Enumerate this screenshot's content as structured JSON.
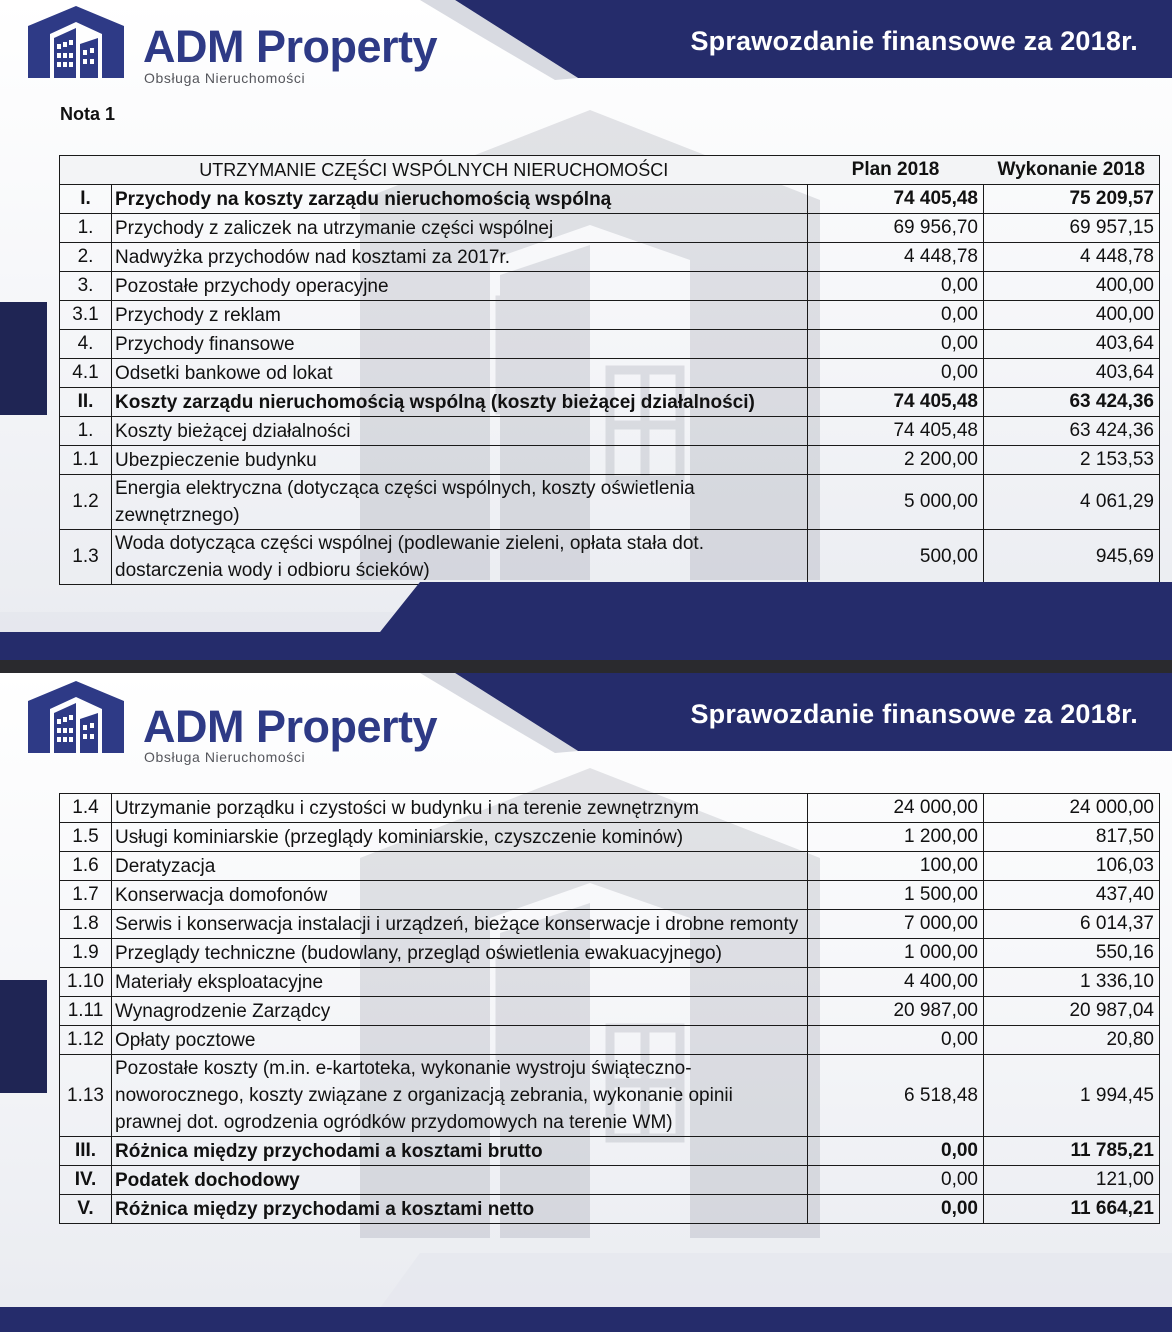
{
  "brand": {
    "name": "ADM Property",
    "tagline": "Obsługa Nieruchomości"
  },
  "report_title": "Sprawozdanie finansowe za 2018r.",
  "note_label": "Nota 1",
  "table": {
    "section_header": "UTRZYMANIE CZĘŚCI WSPÓLNYCH NIERUCHOMOŚCI",
    "col_plan": "Plan 2018",
    "col_exec": "Wykonanie 2018",
    "rows_page1": [
      {
        "num": "I.",
        "label": "Przychody na koszty zarządu nieruchomością wspólną",
        "plan": "74 405,48",
        "exec": "75 209,57",
        "bold": true
      },
      {
        "num": "1.",
        "label": "Przychody z zaliczek na utrzymanie części wspólnej",
        "plan": "69 956,70",
        "exec": "69 957,15",
        "bold": false
      },
      {
        "num": "2.",
        "label": "Nadwyżka przychodów nad kosztami za 2017r.",
        "plan": "4 448,78",
        "exec": "4 448,78",
        "bold": false
      },
      {
        "num": "3.",
        "label": "Pozostałe przychody operacyjne",
        "plan": "0,00",
        "exec": "400,00",
        "bold": false
      },
      {
        "num": "3.1",
        "label": "Przychody z reklam",
        "plan": "0,00",
        "exec": "400,00",
        "bold": false
      },
      {
        "num": "4.",
        "label": "Przychody finansowe",
        "plan": "0,00",
        "exec": "403,64",
        "bold": false
      },
      {
        "num": "4.1",
        "label": "Odsetki bankowe od lokat",
        "plan": "0,00",
        "exec": "403,64",
        "bold": false
      },
      {
        "num": "II.",
        "label": "Koszty zarządu nieruchomością wspólną (koszty bieżącej działalności)",
        "plan": "74 405,48",
        "exec": "63 424,36",
        "bold": true
      },
      {
        "num": "1.",
        "label": "Koszty bieżącej działalności",
        "plan": "74 405,48",
        "exec": "63 424,36",
        "bold": false
      },
      {
        "num": "1.1",
        "label": "Ubezpieczenie budynku",
        "plan": "2 200,00",
        "exec": "2 153,53",
        "bold": false
      },
      {
        "num": "1.2",
        "label": "Energia elektryczna (dotycząca części wspólnych, koszty oświetlenia zewnętrznego)",
        "plan": "5 000,00",
        "exec": "4 061,29",
        "bold": false
      },
      {
        "num": "1.3",
        "label": "Woda dotycząca części wspólnej (podlewanie zieleni, opłata stała dot. dostarczenia wody i odbioru ścieków)",
        "plan": "500,00",
        "exec": "945,69",
        "bold": false
      }
    ],
    "rows_page2": [
      {
        "num": "1.4",
        "label": "Utrzymanie porządku i czystości w budynku i na terenie zewnętrznym",
        "plan": "24 000,00",
        "exec": "24 000,00",
        "bold": false
      },
      {
        "num": "1.5",
        "label": "Usługi kominiarskie (przeglądy kominiarskie, czyszczenie kominów)",
        "plan": "1 200,00",
        "exec": "817,50",
        "bold": false
      },
      {
        "num": "1.6",
        "label": "Deratyzacja",
        "plan": "100,00",
        "exec": "106,03",
        "bold": false
      },
      {
        "num": "1.7",
        "label": "Konserwacja domofonów",
        "plan": "1 500,00",
        "exec": "437,40",
        "bold": false
      },
      {
        "num": "1.8",
        "label": "Serwis i konserwacja instalacji i urządzeń, bieżące konserwacje i drobne remonty",
        "plan": "7 000,00",
        "exec": "6 014,37",
        "bold": false
      },
      {
        "num": "1.9",
        "label": "Przeglądy techniczne (budowlany, przegląd oświetlenia ewakuacyjnego)",
        "plan": "1 000,00",
        "exec": "550,16",
        "bold": false
      },
      {
        "num": "1.10",
        "label": "Materiały eksploatacyjne",
        "plan": "4 400,00",
        "exec": "1 336,10",
        "bold": false
      },
      {
        "num": "1.11",
        "label": "Wynagrodzenie Zarządcy",
        "plan": "20 987,00",
        "exec": "20 987,04",
        "bold": false
      },
      {
        "num": "1.12",
        "label": "Opłaty pocztowe",
        "plan": "0,00",
        "exec": "20,80",
        "bold": false
      },
      {
        "num": "1.13",
        "label": "Pozostałe koszty (m.in. e-kartoteka, wykonanie wystroju świąteczno-noworocznego, koszty związane z organizacją zebrania, wykonanie opinii prawnej dot. ogrodzenia ogródków przydomowych na terenie WM)",
        "plan": "6 518,48",
        "exec": "1 994,45",
        "bold": false
      },
      {
        "num": "III.",
        "label": "Różnica między przychodami a kosztami  brutto",
        "plan": "0,00",
        "exec": "11 785,21",
        "bold": true
      },
      {
        "num": "IV.",
        "label": "Podatek dochodowy",
        "plan": "0,00",
        "exec": "121,00",
        "bold": "label"
      },
      {
        "num": "V.",
        "label": "Różnica między przychodami a kosztami  netto",
        "plan": "0,00",
        "exec": "11 664,21",
        "bold": true
      }
    ]
  },
  "colors": {
    "navy": "#252c6b",
    "dark_navy": "#1f2554",
    "brand_blue": "#2e3a86"
  },
  "icons": [
    "building-logo-icon"
  ]
}
